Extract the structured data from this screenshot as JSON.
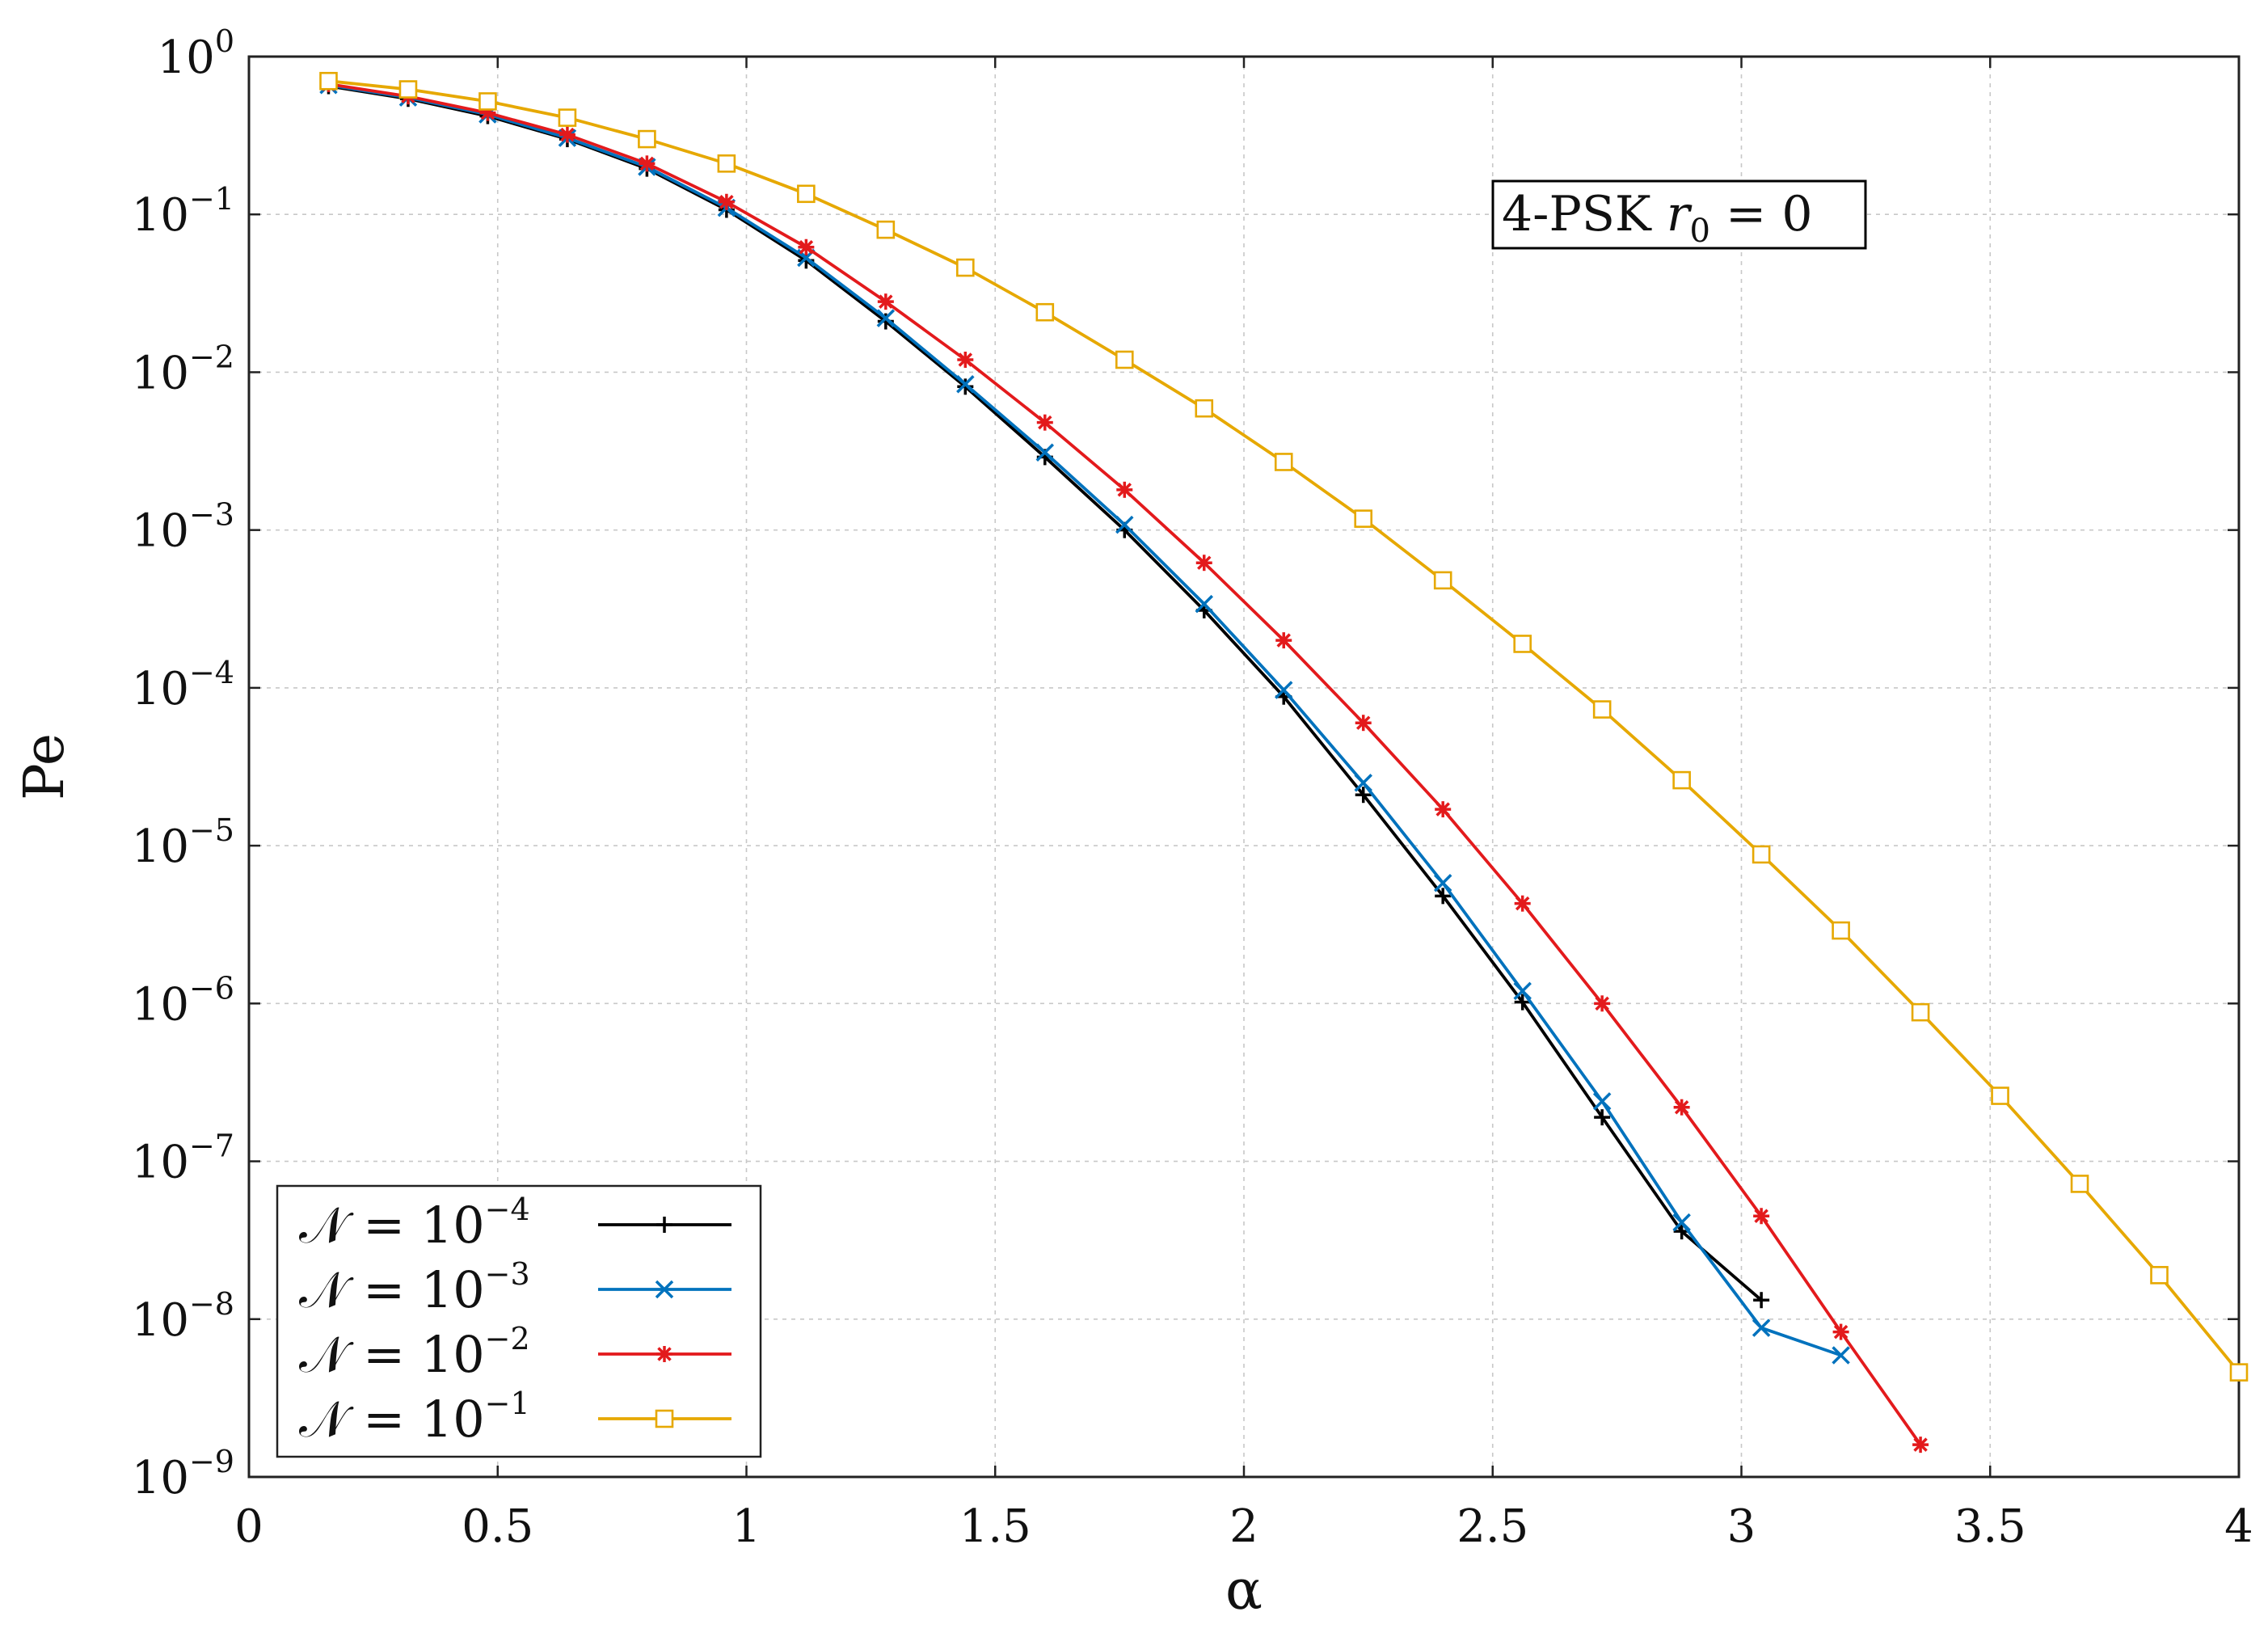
{
  "chart_data": {
    "type": "line",
    "xlabel": "α",
    "ylabel": "Pe",
    "xlim": [
      0,
      4
    ],
    "ylim": [
      1e-09,
      1
    ],
    "yscale": "log",
    "grid": true,
    "legend_position": "bottom-left",
    "x_ticks": [
      0,
      0.5,
      1,
      1.5,
      2,
      2.5,
      3,
      3.5,
      4
    ],
    "x_tick_labels": [
      "0",
      "0.5",
      "1",
      "1.5",
      "2",
      "2.5",
      "3",
      "3.5",
      "4"
    ],
    "y_ticks": [
      {
        "value": 1,
        "base": "10",
        "exp": "0"
      },
      {
        "value": 0.1,
        "base": "10",
        "exp": "−1"
      },
      {
        "value": 0.01,
        "base": "10",
        "exp": "−2"
      },
      {
        "value": 0.001,
        "base": "10",
        "exp": "−3"
      },
      {
        "value": 0.0001,
        "base": "10",
        "exp": "−4"
      },
      {
        "value": 1e-05,
        "base": "10",
        "exp": "−5"
      },
      {
        "value": 1e-06,
        "base": "10",
        "exp": "−6"
      },
      {
        "value": 1e-07,
        "base": "10",
        "exp": "−7"
      },
      {
        "value": 1e-08,
        "base": "10",
        "exp": "−8"
      },
      {
        "value": 1e-09,
        "base": "10",
        "exp": "−9"
      }
    ],
    "annotation": {
      "prefix": "4-PSK ",
      "var": "r",
      "sub": "0",
      "suffix": " = 0"
    },
    "series": [
      {
        "name": "𝒩 = 10⁻⁴",
        "legend_base": "𝒩 = 10",
        "legend_exp": "−4",
        "color": "#000000",
        "marker": "plus",
        "x": [
          0.16,
          0.32,
          0.48,
          0.64,
          0.8,
          0.96,
          1.12,
          1.28,
          1.44,
          1.6,
          1.76,
          1.92,
          2.08,
          2.24,
          2.4,
          2.56,
          2.72,
          2.88,
          3.04
        ],
        "y": [
          0.65,
          0.54,
          0.42,
          0.3,
          0.195,
          0.107,
          0.051,
          0.021,
          0.0081,
          0.0029,
          0.001,
          0.00031,
          8.8e-05,
          2.1e-05,
          4.8e-06,
          1.02e-06,
          1.9e-07,
          3.6e-08,
          1.32e-08
        ]
      },
      {
        "name": "𝒩 = 10⁻³",
        "legend_base": "𝒩 = 10",
        "legend_exp": "−3",
        "color": "#0072bd",
        "marker": "x",
        "x": [
          0.16,
          0.32,
          0.48,
          0.64,
          0.8,
          0.96,
          1.12,
          1.28,
          1.44,
          1.6,
          1.76,
          1.92,
          2.08,
          2.24,
          2.4,
          2.56,
          2.72,
          2.88,
          3.04,
          3.2
        ],
        "y": [
          0.66,
          0.55,
          0.43,
          0.305,
          0.2,
          0.11,
          0.053,
          0.022,
          0.0084,
          0.0031,
          0.00108,
          0.00034,
          9.7e-05,
          2.5e-05,
          5.8e-06,
          1.2e-06,
          2.4e-07,
          4.1e-08,
          8.8e-09,
          5.9e-09
        ]
      },
      {
        "name": "𝒩 = 10⁻²",
        "legend_base": "𝒩 = 10",
        "legend_exp": "−2",
        "color": "#e31a1c",
        "marker": "asterisk",
        "x": [
          0.16,
          0.32,
          0.48,
          0.64,
          0.8,
          0.96,
          1.12,
          1.28,
          1.44,
          1.6,
          1.76,
          1.92,
          2.08,
          2.24,
          2.4,
          2.56,
          2.72,
          2.88,
          3.04,
          3.2,
          3.36
        ],
        "y": [
          0.67,
          0.56,
          0.44,
          0.32,
          0.21,
          0.12,
          0.062,
          0.028,
          0.012,
          0.0048,
          0.0018,
          0.00062,
          0.0002,
          6e-05,
          1.7e-05,
          4.3e-06,
          1e-06,
          2.2e-07,
          4.5e-08,
          8.3e-09,
          1.6e-09
        ]
      },
      {
        "name": "𝒩 = 10⁻¹",
        "legend_base": "𝒩 = 10",
        "legend_exp": "−1",
        "color": "#e6a800",
        "marker": "square",
        "x": [
          0.16,
          0.32,
          0.48,
          0.64,
          0.8,
          0.96,
          1.12,
          1.28,
          1.44,
          1.6,
          1.76,
          1.92,
          2.08,
          2.24,
          2.4,
          2.56,
          2.72,
          2.88,
          3.04,
          3.2,
          3.36,
          3.52,
          3.68,
          3.84,
          4.0
        ],
        "y": [
          0.7,
          0.62,
          0.52,
          0.41,
          0.3,
          0.21,
          0.135,
          0.08,
          0.046,
          0.024,
          0.012,
          0.0059,
          0.0027,
          0.00118,
          0.00048,
          0.00019,
          7.3e-05,
          2.6e-05,
          8.8e-06,
          2.9e-06,
          8.8e-07,
          2.6e-07,
          7.2e-08,
          1.9e-08,
          4.6e-09
        ]
      }
    ]
  }
}
